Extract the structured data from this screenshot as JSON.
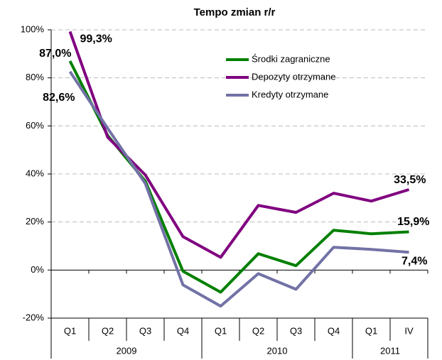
{
  "chart_data": {
    "type": "line",
    "title": "Tempo zmian r/r",
    "categories": [
      "Q1",
      "Q2",
      "Q3",
      "Q4",
      "Q1",
      "Q2",
      "Q3",
      "Q4",
      "Q1",
      "IV"
    ],
    "category_groups": [
      {
        "label": "2009",
        "count": 4
      },
      {
        "label": "2010",
        "count": 4
      },
      {
        "label": "2011",
        "count": 2
      }
    ],
    "series": [
      {
        "name": "Środki zagraniczne",
        "color": "#008000",
        "values": [
          87.0,
          56,
          37,
          -0.5,
          -9.2,
          6.8,
          1.8,
          16.6,
          15.1,
          15.9
        ],
        "value_labels": [
          "87,0%",
          null,
          null,
          null,
          null,
          null,
          null,
          null,
          null,
          "15,9%"
        ]
      },
      {
        "name": "Depozyty otrzymane",
        "color": "#800080",
        "values": [
          99.3,
          55.3,
          39.6,
          13.9,
          5.3,
          26.9,
          24,
          32,
          28.7,
          33.5
        ],
        "value_labels": [
          "99,3%",
          null,
          null,
          null,
          null,
          null,
          null,
          null,
          null,
          "33,5%"
        ]
      },
      {
        "name": "Kredyty otrzymane",
        "color": "#7272a6",
        "values": [
          82.6,
          59,
          36,
          -6.2,
          -15,
          -1.5,
          -8,
          9.5,
          8.6,
          7.4
        ],
        "value_labels": [
          "82,6%",
          null,
          null,
          null,
          null,
          null,
          null,
          null,
          null,
          "7,4%"
        ]
      }
    ],
    "ylim": [
      -20,
      100
    ],
    "yticks": [
      {
        "value": -20,
        "label": "-20%"
      },
      {
        "value": 0,
        "label": "0%"
      },
      {
        "value": 20,
        "label": "20%"
      },
      {
        "value": 40,
        "label": "40%"
      },
      {
        "value": 60,
        "label": "60%"
      },
      {
        "value": 80,
        "label": "80%"
      },
      {
        "value": 100,
        "label": "100%"
      }
    ],
    "grid": true,
    "legend": "upper center"
  }
}
